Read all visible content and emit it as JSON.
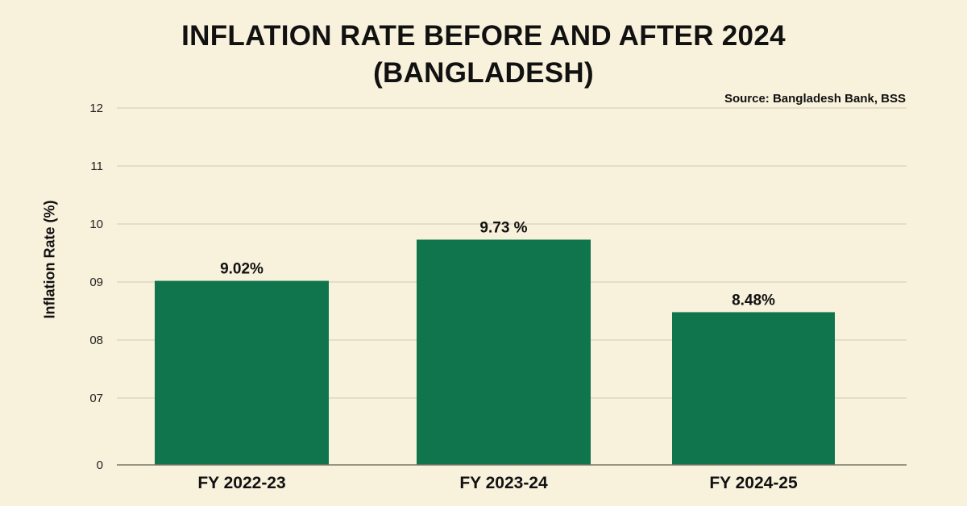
{
  "chart_data": {
    "type": "bar",
    "title_line1": "INFLATION RATE BEFORE AND AFTER 2024",
    "title_line2": "(BANGLADESH)",
    "source": "Source: Bangladesh Bank, BSS",
    "ylabel": "Inflation Rate (%)",
    "categories": [
      "FY 2022-23",
      "FY 2023-24",
      "FY 2024-25"
    ],
    "values": [
      9.02,
      9.73,
      8.48
    ],
    "data_labels": [
      "9.02%",
      "9.73 %",
      "8.48%"
    ],
    "yticks": [
      "0",
      "07",
      "08",
      "09",
      "10",
      "11",
      "12"
    ],
    "grid": true,
    "bar_color": "#10744c",
    "grid_color": "#d8d1bc"
  }
}
